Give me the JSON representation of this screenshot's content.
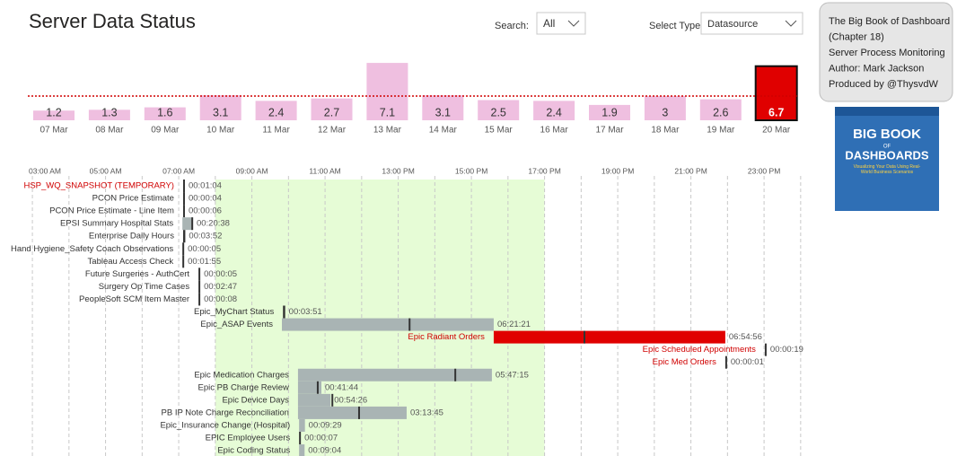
{
  "header": {
    "title": "Server Data Status",
    "search_label": "Search:",
    "search_value": "All",
    "type_label": "Select Type:",
    "type_value": "Datasource"
  },
  "info": {
    "lines": [
      "The Big Book of Dashboard",
      "(Chapter 18)",
      "Server Process Monitoring",
      "Author: Mark Jackson",
      "Produced by @ThysvdW"
    ]
  },
  "book_cover": {
    "title_top": "BIG BOOK",
    "title_mid": "OF",
    "title_bottom": "DASHBOARDS",
    "subtitle": "Visualizing Your Data Using Real-World Business Scenarios"
  },
  "chart_data": [
    {
      "type": "bar",
      "categories": [
        "07 Mar",
        "08 Mar",
        "09 Mar",
        "10 Mar",
        "11 Mar",
        "12 Mar",
        "13 Mar",
        "14 Mar",
        "15 Mar",
        "16 Mar",
        "17 Mar",
        "18 Mar",
        "19 Mar",
        "20 Mar"
      ],
      "values": [
        1.2,
        1.3,
        1.6,
        3.1,
        2.4,
        2.7,
        7.1,
        3.1,
        2.5,
        2.4,
        1.9,
        3,
        2.6,
        6.7
      ],
      "colors": [
        "#efbfe0",
        "#efbfe0",
        "#efbfe0",
        "#efbfe0",
        "#efbfe0",
        "#efbfe0",
        "#efbfe0",
        "#efbfe0",
        "#efbfe0",
        "#efbfe0",
        "#efbfe0",
        "#efbfe0",
        "#efbfe0",
        "#e00000"
      ],
      "highlight_color": "#e00000",
      "reference_line": 3,
      "reference_color": "#d00000"
    },
    {
      "type": "gantt",
      "xlim": [
        2.9,
        24.2
      ],
      "xticks": [
        {
          "value": 3,
          "label": "03:00 AM"
        },
        {
          "value": 5,
          "label": "05:00 AM"
        },
        {
          "value": 7,
          "label": "07:00 AM"
        },
        {
          "value": 9,
          "label": "09:00 AM"
        },
        {
          "value": 11,
          "label": "11:00 AM"
        },
        {
          "value": 13,
          "label": "13:00 PM"
        },
        {
          "value": 15,
          "label": "15:00 PM"
        },
        {
          "value": 17,
          "label": "17:00 PM"
        },
        {
          "value": 19,
          "label": "19:00 PM"
        },
        {
          "value": 21,
          "label": "21:00 PM"
        },
        {
          "value": 23,
          "label": "23:00 PM"
        }
      ],
      "minor_xticks": [
        4,
        6,
        8,
        10,
        12,
        14,
        16,
        18,
        20,
        22,
        24
      ],
      "grid": true,
      "highlight_range": [
        8,
        17
      ],
      "highlight_color": "#e6fcd6",
      "tasks": [
        {
          "name": "HSP_WQ_SNAPSHOT (TEMPORARY)",
          "start": 7.12,
          "end": 7.14,
          "marker": null,
          "duration": "00:01:04",
          "color": "#a9b4b4",
          "name_color": "#d00000"
        },
        {
          "name": "PCON Price Estimate",
          "start": 7.12,
          "end": 7.12,
          "marker": null,
          "duration": "00:00:04",
          "color": "#a9b4b4",
          "name_color": "#333333"
        },
        {
          "name": "PCON Price Estimate - Line Item",
          "start": 7.12,
          "end": 7.12,
          "marker": null,
          "duration": "00:00:06",
          "color": "#a9b4b4",
          "name_color": "#333333"
        },
        {
          "name": "EPSI Summary Hospital Stats",
          "start": 7.1,
          "end": 7.39,
          "marker": 7.37,
          "duration": "00:20:38",
          "color": "#a9b4b4",
          "name_color": "#333333"
        },
        {
          "name": "Enterprise Daily Hours",
          "start": 7.12,
          "end": 7.18,
          "marker": null,
          "duration": "00:03:52",
          "color": "#a9b4b4",
          "name_color": "#333333"
        },
        {
          "name": "Hand Hygiene_Safety Coach Observations",
          "start": 7.1,
          "end": 7.1,
          "marker": null,
          "duration": "00:00:05",
          "color": "#a9b4b4",
          "name_color": "#333333"
        },
        {
          "name": "Tableau Access Check",
          "start": 7.1,
          "end": 7.13,
          "marker": null,
          "duration": "00:01:55",
          "color": "#a9b4b4",
          "name_color": "#333333"
        },
        {
          "name": "Future Surgeries - AuthCert",
          "start": 7.54,
          "end": 7.54,
          "marker": null,
          "duration": "00:00:05",
          "color": "#a9b4b4",
          "name_color": "#333333"
        },
        {
          "name": "Surgery Op Time Cases",
          "start": 7.54,
          "end": 7.58,
          "marker": null,
          "duration": "00:02:47",
          "color": "#a9b4b4",
          "name_color": "#333333"
        },
        {
          "name": "PeopleSoft SCM Item Master",
          "start": 7.54,
          "end": 7.54,
          "marker": null,
          "duration": "00:00:08",
          "color": "#a9b4b4",
          "name_color": "#333333"
        },
        {
          "name": "Epic_MyChart Status",
          "start": 9.85,
          "end": 9.91,
          "marker": null,
          "duration": "00:03:51",
          "color": "#a9b4b4",
          "name_color": "#333333"
        },
        {
          "name": "Epic_ASAP Events",
          "start": 9.82,
          "end": 15.61,
          "marker": 13.31,
          "duration": "06:21:21",
          "color": "#a9b4b4",
          "name_color": "#333333"
        },
        {
          "name": "Epic Radiant Orders",
          "start": 15.61,
          "end": 21.94,
          "marker": 18.09,
          "duration": "06:54:56",
          "color": "#e00000",
          "name_color": "#d00000"
        },
        {
          "name": "Epic Scheduled Appointments",
          "start": 23.02,
          "end": 23.03,
          "marker": null,
          "duration": "00:00:19",
          "color": "#a9b4b4",
          "name_color": "#d00000"
        },
        {
          "name": "Epic Med Orders",
          "start": 21.94,
          "end": 21.94,
          "marker": null,
          "duration": "00:00:01",
          "color": "#a9b4b4",
          "name_color": "#d00000"
        },
        {
          "name": "Epic Medication Charges",
          "start": 10.26,
          "end": 15.56,
          "marker": 14.56,
          "duration": "05:47:15",
          "color": "#a9b4b4",
          "name_color": "#333333"
        },
        {
          "name": "Epic PB Charge Review",
          "start": 10.26,
          "end": 10.9,
          "marker": 10.8,
          "duration": "00:41:44",
          "color": "#a9b4b4",
          "name_color": "#333333"
        },
        {
          "name": "Epic Device Days",
          "start": 10.26,
          "end": 11.15,
          "marker": 11.2,
          "duration": "00:54:26",
          "color": "#a9b4b4",
          "name_color": "#333333"
        },
        {
          "name": "PB IP Note Charge Reconciliation",
          "start": 10.26,
          "end": 13.23,
          "marker": 11.93,
          "duration": "03:13:45",
          "color": "#a9b4b4",
          "name_color": "#333333"
        },
        {
          "name": "Epic_Insurance Change (Hospital)",
          "start": 10.29,
          "end": 10.45,
          "marker": null,
          "duration": "00:09:29",
          "color": "#a9b4b4",
          "name_color": "#333333"
        },
        {
          "name": "EPIC Employee Users",
          "start": 10.29,
          "end": 10.29,
          "marker": null,
          "duration": "00:00:07",
          "color": "#a9b4b4",
          "name_color": "#333333"
        },
        {
          "name": "Epic Coding Status",
          "start": 10.29,
          "end": 10.44,
          "marker": null,
          "duration": "00:09:04",
          "color": "#a9b4b4",
          "name_color": "#333333"
        }
      ]
    }
  ]
}
